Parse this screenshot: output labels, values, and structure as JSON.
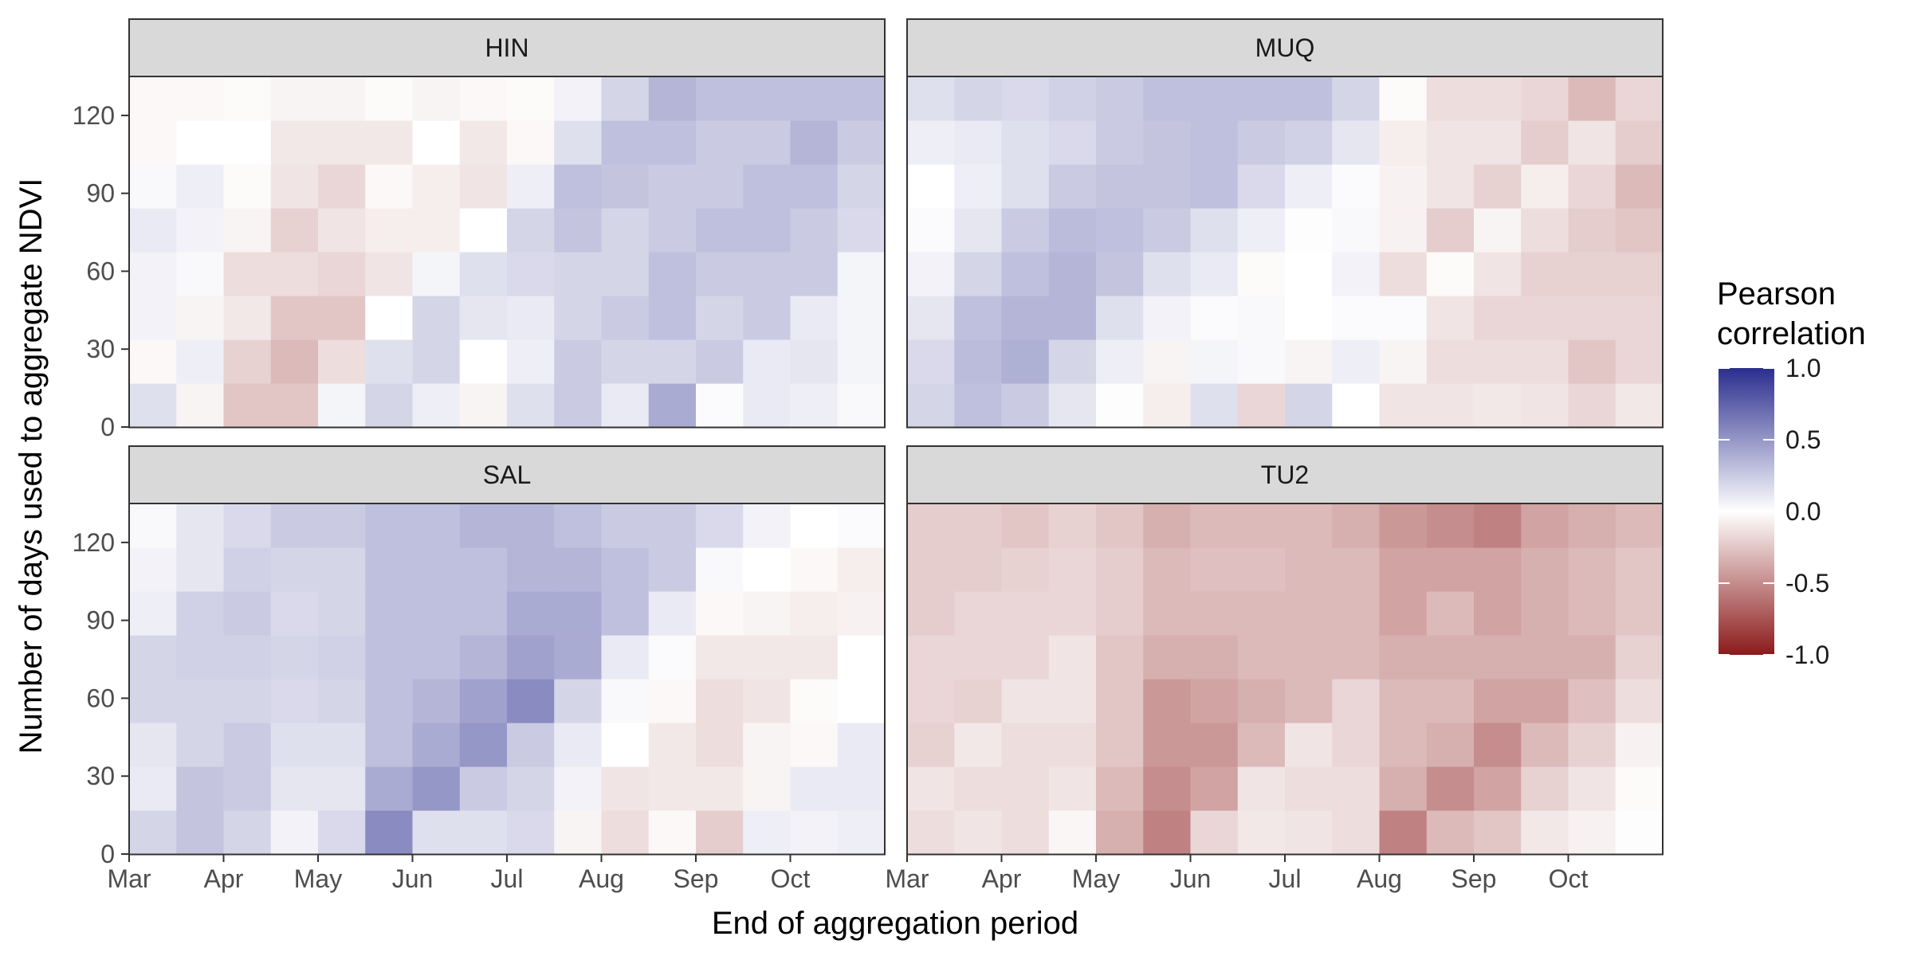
{
  "chart_data": {
    "type": "heatmap",
    "title": "",
    "xlabel": "End of aggregation period",
    "ylabel": "Number of days used to aggregate NDVI",
    "x_tick_labels": [
      "Mar",
      "Apr",
      "May",
      "Jun",
      "Jul",
      "Aug",
      "Sep",
      "Oct"
    ],
    "y_tick_labels": [
      "0",
      "30",
      "60",
      "90",
      "120"
    ],
    "y_values": [
      15,
      30,
      45,
      60,
      75,
      90,
      105,
      120
    ],
    "x_columns": 16,
    "legend": {
      "title_line1": "Pearson",
      "title_line2": "correlation",
      "ticks": [
        "1.0",
        "0.5",
        "0.0",
        "-0.5",
        "-1.0"
      ],
      "limits": [
        -1,
        1
      ],
      "colors": {
        "high": "#2b2e8e",
        "mid": "#ffffff",
        "low": "#8b1a1a"
      }
    },
    "panels": [
      {
        "name": "HIN",
        "values": [
          [
            0.15,
            -0.05,
            -0.25,
            -0.25,
            0.05,
            0.2,
            0.08,
            -0.05,
            0.15,
            0.25,
            0.1,
            0.4,
            0.02,
            0.1,
            0.08,
            0.03
          ],
          [
            -0.03,
            0.08,
            -0.2,
            -0.3,
            -0.15,
            0.15,
            0.2,
            0.0,
            0.08,
            0.25,
            0.2,
            0.2,
            0.25,
            0.1,
            0.12,
            0.05
          ],
          [
            0.06,
            -0.05,
            -0.1,
            -0.25,
            -0.25,
            0.0,
            0.2,
            0.12,
            0.1,
            0.2,
            0.25,
            0.3,
            0.2,
            0.25,
            0.1,
            0.05
          ],
          [
            0.06,
            0.03,
            -0.15,
            -0.15,
            -0.18,
            -0.12,
            0.05,
            0.15,
            0.18,
            0.2,
            0.2,
            0.3,
            0.25,
            0.25,
            0.25,
            0.05
          ],
          [
            0.1,
            0.06,
            -0.05,
            -0.2,
            -0.12,
            -0.08,
            -0.08,
            0.0,
            0.2,
            0.28,
            0.2,
            0.25,
            0.3,
            0.3,
            0.25,
            0.18
          ],
          [
            0.03,
            0.08,
            -0.02,
            -0.12,
            -0.18,
            -0.03,
            -0.08,
            -0.12,
            0.08,
            0.3,
            0.28,
            0.25,
            0.25,
            0.3,
            0.3,
            0.2
          ],
          [
            -0.03,
            0.0,
            0.0,
            -0.1,
            -0.1,
            -0.1,
            0.0,
            -0.1,
            -0.03,
            0.15,
            0.3,
            0.3,
            0.25,
            0.25,
            0.35,
            0.25
          ],
          [
            -0.03,
            -0.03,
            -0.02,
            -0.05,
            -0.05,
            -0.02,
            -0.05,
            -0.03,
            -0.02,
            0.06,
            0.2,
            0.35,
            0.3,
            0.3,
            0.3,
            0.3
          ]
        ]
      },
      {
        "name": "MUQ",
        "values": [
          [
            0.2,
            0.3,
            0.25,
            0.12,
            -0.01,
            -0.08,
            0.15,
            -0.18,
            0.2,
            0.0,
            -0.12,
            -0.12,
            -0.1,
            -0.12,
            -0.18,
            -0.1
          ],
          [
            0.18,
            0.32,
            0.38,
            0.2,
            0.08,
            -0.05,
            0.05,
            0.03,
            -0.05,
            0.08,
            -0.05,
            -0.15,
            -0.15,
            -0.15,
            -0.25,
            -0.18
          ],
          [
            0.12,
            0.3,
            0.35,
            0.35,
            0.15,
            0.06,
            0.02,
            0.03,
            0.0,
            0.02,
            0.02,
            -0.12,
            -0.18,
            -0.18,
            -0.18,
            -0.18
          ],
          [
            0.06,
            0.2,
            0.3,
            0.35,
            0.28,
            0.15,
            0.1,
            -0.02,
            0.0,
            0.06,
            -0.15,
            -0.02,
            -0.12,
            -0.2,
            -0.2,
            -0.2
          ],
          [
            0.02,
            0.12,
            0.25,
            0.32,
            0.3,
            0.25,
            0.15,
            0.08,
            -0.01,
            0.03,
            -0.06,
            -0.22,
            -0.05,
            -0.15,
            -0.22,
            -0.25
          ],
          [
            0.0,
            0.08,
            0.15,
            0.25,
            0.28,
            0.28,
            0.3,
            0.18,
            0.08,
            0.02,
            -0.06,
            -0.12,
            -0.2,
            -0.08,
            -0.18,
            -0.3
          ],
          [
            0.08,
            0.1,
            0.15,
            0.18,
            0.25,
            0.28,
            0.3,
            0.25,
            0.22,
            0.12,
            -0.08,
            -0.12,
            -0.12,
            -0.22,
            -0.12,
            -0.22
          ],
          [
            0.15,
            0.2,
            0.18,
            0.22,
            0.25,
            0.3,
            0.3,
            0.3,
            0.3,
            0.2,
            -0.02,
            -0.15,
            -0.15,
            -0.18,
            -0.3,
            -0.18
          ]
        ]
      },
      {
        "name": "SAL",
        "values": [
          [
            0.2,
            0.28,
            0.2,
            0.06,
            0.18,
            0.55,
            0.15,
            0.15,
            0.18,
            -0.05,
            -0.15,
            -0.03,
            -0.22,
            0.08,
            0.06,
            0.08
          ],
          [
            0.1,
            0.28,
            0.25,
            0.12,
            0.12,
            0.4,
            0.5,
            0.25,
            0.2,
            0.06,
            -0.12,
            -0.1,
            -0.1,
            -0.05,
            0.1,
            0.1
          ],
          [
            0.12,
            0.2,
            0.25,
            0.15,
            0.15,
            0.3,
            0.4,
            0.5,
            0.25,
            0.1,
            0.0,
            -0.1,
            -0.15,
            -0.05,
            -0.03,
            0.1
          ],
          [
            0.2,
            0.2,
            0.2,
            0.18,
            0.2,
            0.3,
            0.35,
            0.45,
            0.55,
            0.2,
            0.03,
            -0.03,
            -0.15,
            -0.12,
            -0.02,
            0.0
          ],
          [
            0.2,
            0.22,
            0.22,
            0.2,
            0.22,
            0.3,
            0.3,
            0.35,
            0.45,
            0.4,
            0.1,
            0.02,
            -0.1,
            -0.1,
            -0.1,
            0.0
          ],
          [
            0.08,
            0.22,
            0.25,
            0.18,
            0.2,
            0.3,
            0.3,
            0.3,
            0.4,
            0.4,
            0.3,
            0.1,
            -0.03,
            -0.05,
            -0.08,
            -0.06
          ],
          [
            0.06,
            0.12,
            0.22,
            0.2,
            0.2,
            0.3,
            0.3,
            0.3,
            0.35,
            0.35,
            0.3,
            0.25,
            0.03,
            0.0,
            -0.03,
            -0.08
          ],
          [
            0.03,
            0.12,
            0.18,
            0.25,
            0.25,
            0.3,
            0.3,
            0.35,
            0.35,
            0.3,
            0.25,
            0.25,
            0.18,
            0.06,
            0.0,
            0.02
          ]
        ]
      },
      {
        "name": "TU2",
        "values": [
          [
            -0.15,
            -0.12,
            -0.15,
            -0.04,
            -0.35,
            -0.55,
            -0.18,
            -0.1,
            -0.12,
            -0.15,
            -0.55,
            -0.3,
            -0.25,
            -0.1,
            -0.06,
            0.01
          ],
          [
            -0.12,
            -0.15,
            -0.15,
            -0.12,
            -0.3,
            -0.5,
            -0.4,
            -0.12,
            -0.15,
            -0.15,
            -0.35,
            -0.5,
            -0.4,
            -0.2,
            -0.12,
            -0.02
          ],
          [
            -0.2,
            -0.1,
            -0.15,
            -0.15,
            -0.25,
            -0.45,
            -0.45,
            -0.3,
            -0.12,
            -0.18,
            -0.3,
            -0.35,
            -0.5,
            -0.3,
            -0.2,
            -0.06
          ],
          [
            -0.18,
            -0.2,
            -0.12,
            -0.12,
            -0.25,
            -0.45,
            -0.4,
            -0.35,
            -0.3,
            -0.18,
            -0.3,
            -0.3,
            -0.4,
            -0.4,
            -0.28,
            -0.15
          ],
          [
            -0.18,
            -0.18,
            -0.18,
            -0.12,
            -0.25,
            -0.35,
            -0.35,
            -0.3,
            -0.3,
            -0.3,
            -0.35,
            -0.35,
            -0.35,
            -0.35,
            -0.35,
            -0.2
          ],
          [
            -0.22,
            -0.18,
            -0.18,
            -0.18,
            -0.22,
            -0.3,
            -0.3,
            -0.3,
            -0.3,
            -0.3,
            -0.4,
            -0.3,
            -0.4,
            -0.35,
            -0.3,
            -0.25
          ],
          [
            -0.22,
            -0.22,
            -0.2,
            -0.18,
            -0.22,
            -0.3,
            -0.28,
            -0.28,
            -0.3,
            -0.3,
            -0.4,
            -0.4,
            -0.4,
            -0.35,
            -0.3,
            -0.25
          ],
          [
            -0.22,
            -0.22,
            -0.25,
            -0.2,
            -0.25,
            -0.35,
            -0.3,
            -0.3,
            -0.3,
            -0.35,
            -0.45,
            -0.5,
            -0.55,
            -0.4,
            -0.35,
            -0.3
          ]
        ]
      }
    ]
  }
}
